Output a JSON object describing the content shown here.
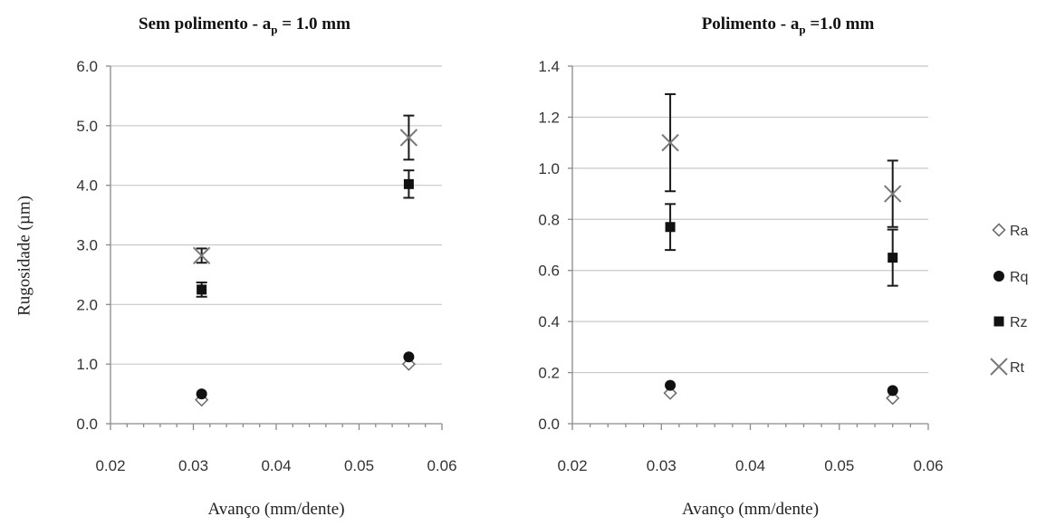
{
  "y_axis_label": "Rugosidade (µm)",
  "legend": [
    {
      "name": "Ra",
      "marker": "diamond"
    },
    {
      "name": "Rq",
      "marker": "circle"
    },
    {
      "name": "Rz",
      "marker": "square"
    },
    {
      "name": "Rt",
      "marker": "cross"
    }
  ],
  "colors": {
    "marker": "#111111",
    "rt_marker": "#7a7a7a",
    "error_bar": "#1a1a1a",
    "grid": "#c8c8c8"
  },
  "chart_data": [
    {
      "type": "scatter",
      "title_main": "Sem polimento - a",
      "title_sub": "p",
      "title_rest": " = 1.0 mm",
      "xlabel": "Avanço (mm/dente)",
      "ylabel": "Rugosidade (µm)",
      "xlim": [
        0.02,
        0.06
      ],
      "ylim": [
        0,
        6
      ],
      "x_ticks": [
        0.02,
        0.03,
        0.04,
        0.05,
        0.06
      ],
      "x_tick_labels": [
        "0.02",
        "0.03",
        "0.04",
        "0.05",
        "0.06"
      ],
      "y_ticks": [
        0,
        1,
        2,
        3,
        4,
        5,
        6
      ],
      "y_tick_labels": [
        "0.0",
        "1.0",
        "2.0",
        "3.0",
        "4.0",
        "5.0",
        "6.0"
      ],
      "grid": true,
      "series": [
        {
          "name": "Ra",
          "x": [
            0.031,
            0.056
          ],
          "y": [
            0.4,
            1.0
          ],
          "err": [
            0,
            0
          ]
        },
        {
          "name": "Rq",
          "x": [
            0.031,
            0.056
          ],
          "y": [
            0.5,
            1.12
          ],
          "err": [
            0,
            0
          ]
        },
        {
          "name": "Rz",
          "x": [
            0.031,
            0.056
          ],
          "y": [
            2.25,
            4.02
          ],
          "err": [
            0.12,
            0.23
          ]
        },
        {
          "name": "Rt",
          "x": [
            0.031,
            0.056
          ],
          "y": [
            2.82,
            4.8
          ],
          "err": [
            0.12,
            0.37
          ]
        }
      ]
    },
    {
      "type": "scatter",
      "title_main": "Polimento - a",
      "title_sub": "p",
      "title_rest": " =1.0 mm",
      "xlabel": "Avanço (mm/dente)",
      "ylabel": "",
      "xlim": [
        0.02,
        0.06
      ],
      "ylim": [
        0,
        1.4
      ],
      "x_ticks": [
        0.02,
        0.03,
        0.04,
        0.05,
        0.06
      ],
      "x_tick_labels": [
        "0.02",
        "0.03",
        "0.04",
        "0.05",
        "0.06"
      ],
      "y_ticks": [
        0,
        0.2,
        0.4,
        0.6,
        0.8,
        1.0,
        1.2,
        1.4
      ],
      "y_tick_labels": [
        "0.0",
        "0.2",
        "0.4",
        "0.6",
        "0.8",
        "1.0",
        "1.2",
        "1.4"
      ],
      "grid": true,
      "series": [
        {
          "name": "Ra",
          "x": [
            0.031,
            0.056
          ],
          "y": [
            0.12,
            0.1
          ],
          "err": [
            0,
            0
          ]
        },
        {
          "name": "Rq",
          "x": [
            0.031,
            0.056
          ],
          "y": [
            0.15,
            0.13
          ],
          "err": [
            0,
            0
          ]
        },
        {
          "name": "Rz",
          "x": [
            0.031,
            0.056
          ],
          "y": [
            0.77,
            0.65
          ],
          "err": [
            0.09,
            0.11
          ]
        },
        {
          "name": "Rt",
          "x": [
            0.031,
            0.056
          ],
          "y": [
            1.1,
            0.9
          ],
          "err": [
            0.19,
            0.13
          ]
        }
      ]
    }
  ]
}
